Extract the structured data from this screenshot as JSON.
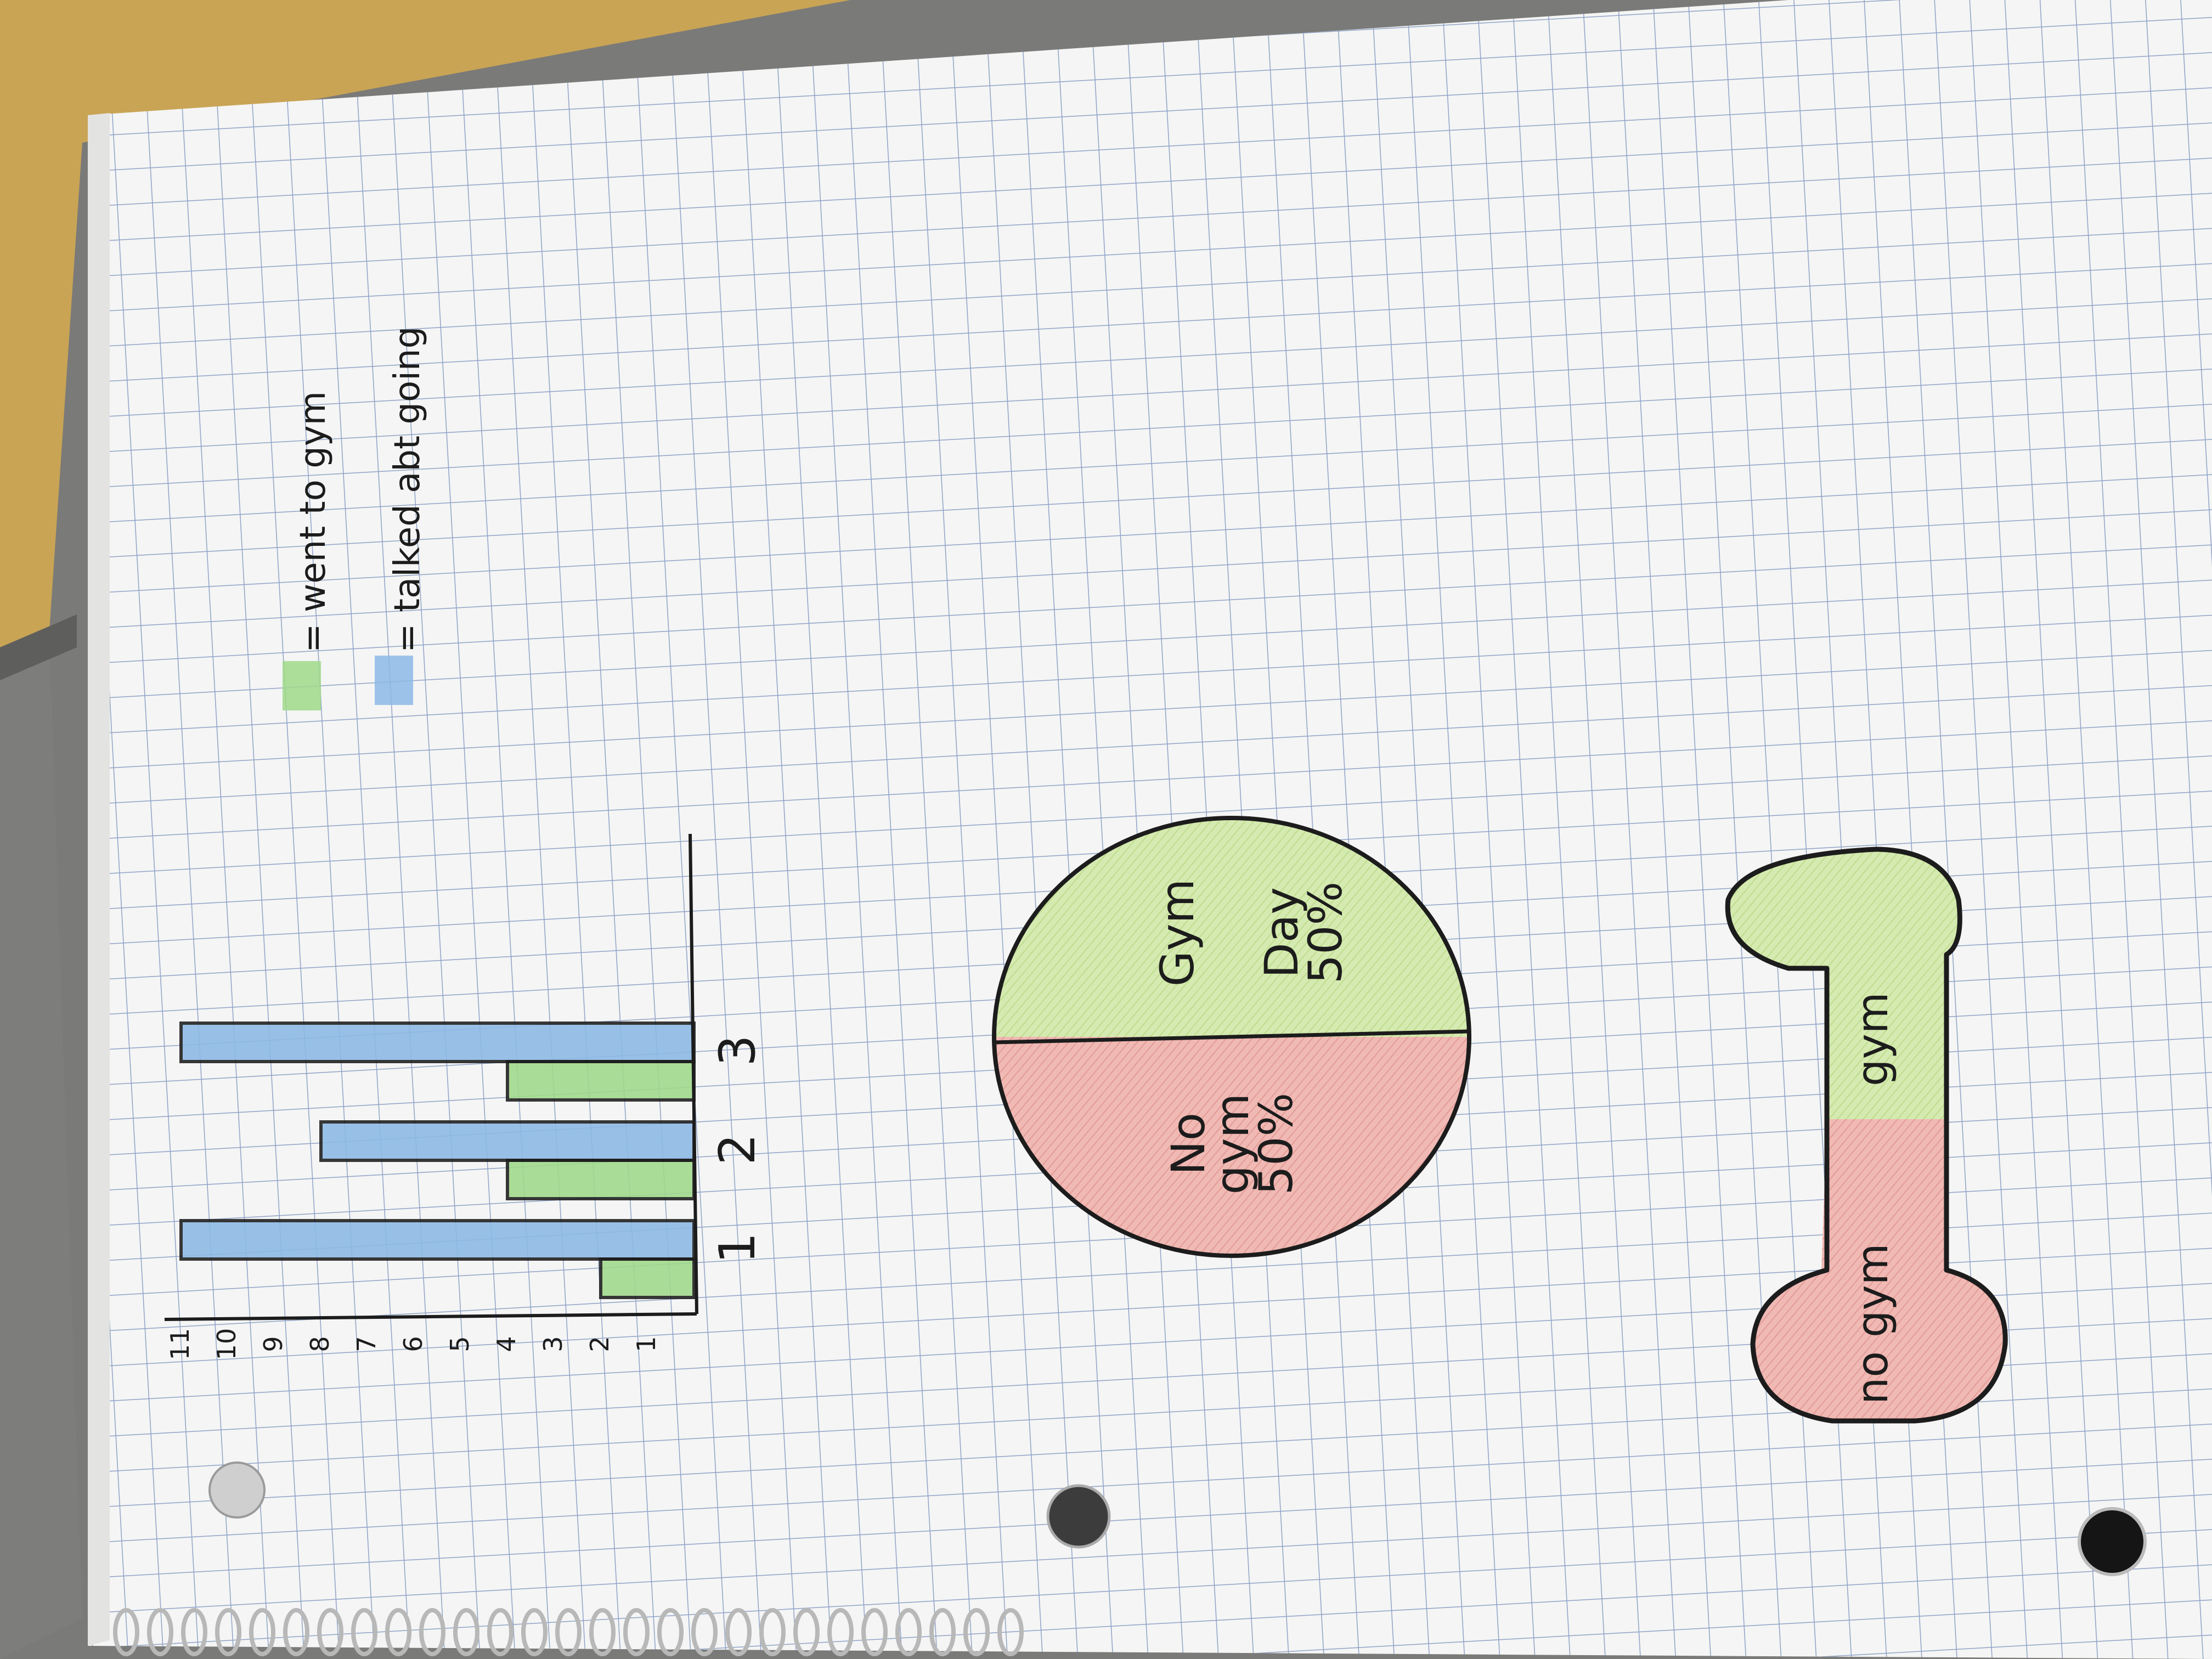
{
  "bar_chart": {
    "y_ticks": [
      "11",
      "10",
      "9",
      "8",
      "7",
      "6",
      "5",
      "4",
      "3",
      "2",
      "1"
    ],
    "categories": [
      "1",
      "2",
      "3"
    ],
    "legend": [
      {
        "swatch": "#9fd98a",
        "label": "= went to gym"
      },
      {
        "swatch": "#8cb9e6",
        "label": "= talked abt going"
      }
    ]
  },
  "chart_data": {
    "type": "bar",
    "categories": [
      "1",
      "2",
      "3"
    ],
    "series": [
      {
        "name": "went to gym",
        "values": [
          2,
          4,
          4
        ]
      },
      {
        "name": "talked abt going",
        "values": [
          11,
          8,
          11
        ]
      }
    ],
    "ylim": [
      0,
      11
    ]
  },
  "pie_chart": {
    "slices": [
      {
        "label": "Gym Day 50%",
        "lines": [
          "Gym",
          "Day",
          "50%"
        ],
        "value": 50,
        "color": "#cfe6a8"
      },
      {
        "label": "No gym 50%",
        "lines": [
          "No",
          "gym",
          "50%"
        ],
        "value": 50,
        "color": "#f0b9b4"
      }
    ]
  },
  "dumbbell": {
    "left_label": "no gym",
    "right_label": "gym",
    "left_color": "#f0b9b4",
    "right_color": "#cfe6a8"
  },
  "colors": {
    "desk_wood": "#c9a455",
    "desk_gray": "#7d7d7b",
    "paper": "#f4f5f4",
    "grid": "#6f86b8",
    "ink": "#1c1c1c"
  }
}
